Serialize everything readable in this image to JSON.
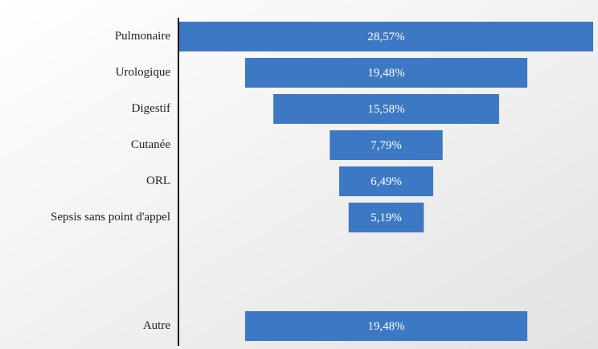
{
  "chart_data": {
    "type": "funnel",
    "categories": [
      "Pulmonaire",
      "Urologique",
      "Digestif",
      "Cutanée",
      "ORL",
      "Sepsis sans point d'appel",
      null,
      null,
      "Autre"
    ],
    "values": [
      28.57,
      19.48,
      15.58,
      7.79,
      6.49,
      5.19,
      null,
      null,
      19.48
    ],
    "value_labels": [
      "28,57%",
      "19,48%",
      "15,58%",
      "7,79%",
      "6,49%",
      "5,19%",
      null,
      null,
      "19,48%"
    ],
    "color": "#3c78c3"
  }
}
